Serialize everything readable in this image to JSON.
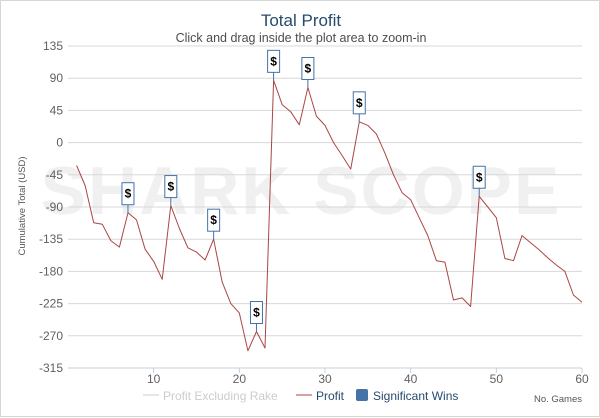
{
  "chart_data": {
    "type": "line",
    "title": "Total Profit",
    "subtitle": "Click and drag inside the plot area to zoom-in",
    "xlabel": "No. Games",
    "ylabel": "Cumulative Total (USD)",
    "xlim": [
      0,
      60
    ],
    "ylim": [
      -315,
      135
    ],
    "x_ticks": [
      10,
      20,
      30,
      40,
      50,
      60
    ],
    "y_ticks": [
      135,
      90,
      45,
      0,
      -45,
      -90,
      -135,
      -180,
      -225,
      -270,
      -315
    ],
    "grid": "horizontal",
    "legend_placement": "bottom",
    "watermark": "SHARK SCOPE",
    "series": [
      {
        "name": "Profit Excluding Rake",
        "color": "#cccccc",
        "visible": false,
        "x": [],
        "y": []
      },
      {
        "name": "Profit",
        "color": "#aa4643",
        "x": [
          1,
          2,
          3,
          4,
          5,
          6,
          7,
          8,
          9,
          10,
          11,
          12,
          13,
          14,
          15,
          16,
          17,
          18,
          19,
          20,
          21,
          22,
          23,
          24,
          25,
          26,
          27,
          28,
          29,
          30,
          31,
          32,
          33,
          34,
          35,
          36,
          37,
          38,
          39,
          40,
          41,
          42,
          43,
          44,
          45,
          46,
          47,
          48,
          49,
          50,
          51,
          52,
          53,
          54,
          55,
          56,
          57,
          58,
          59,
          60
        ],
        "y": [
          -32,
          -60,
          -112,
          -114,
          -137,
          -146,
          -98,
          -108,
          -149,
          -166,
          -191,
          -88,
          -120,
          -147,
          -153,
          -164,
          -135,
          -195,
          -225,
          -238,
          -291,
          -264,
          -287,
          87,
          53,
          43,
          25,
          77,
          37,
          24,
          0,
          -18,
          -37,
          29,
          24,
          12,
          -15,
          -45,
          -70,
          -80,
          -105,
          -130,
          -165,
          -167,
          -220,
          -217,
          -229,
          -75,
          -90,
          -105,
          -162,
          -165,
          -130,
          -140,
          -150,
          -161,
          -171,
          -180,
          -213,
          -223
        ]
      },
      {
        "name": "Significant Wins",
        "type": "flags",
        "color": "#4572a7",
        "points": [
          {
            "x": 7,
            "y": -98,
            "label": "$"
          },
          {
            "x": 12,
            "y": -88,
            "label": "$"
          },
          {
            "x": 17,
            "y": -135,
            "label": "$"
          },
          {
            "x": 22,
            "y": -264,
            "label": "$"
          },
          {
            "x": 24,
            "y": 87,
            "label": "$"
          },
          {
            "x": 28,
            "y": 77,
            "label": "$"
          },
          {
            "x": 34,
            "y": 29,
            "label": "$"
          },
          {
            "x": 48,
            "y": -75,
            "label": "$"
          }
        ]
      }
    ]
  }
}
